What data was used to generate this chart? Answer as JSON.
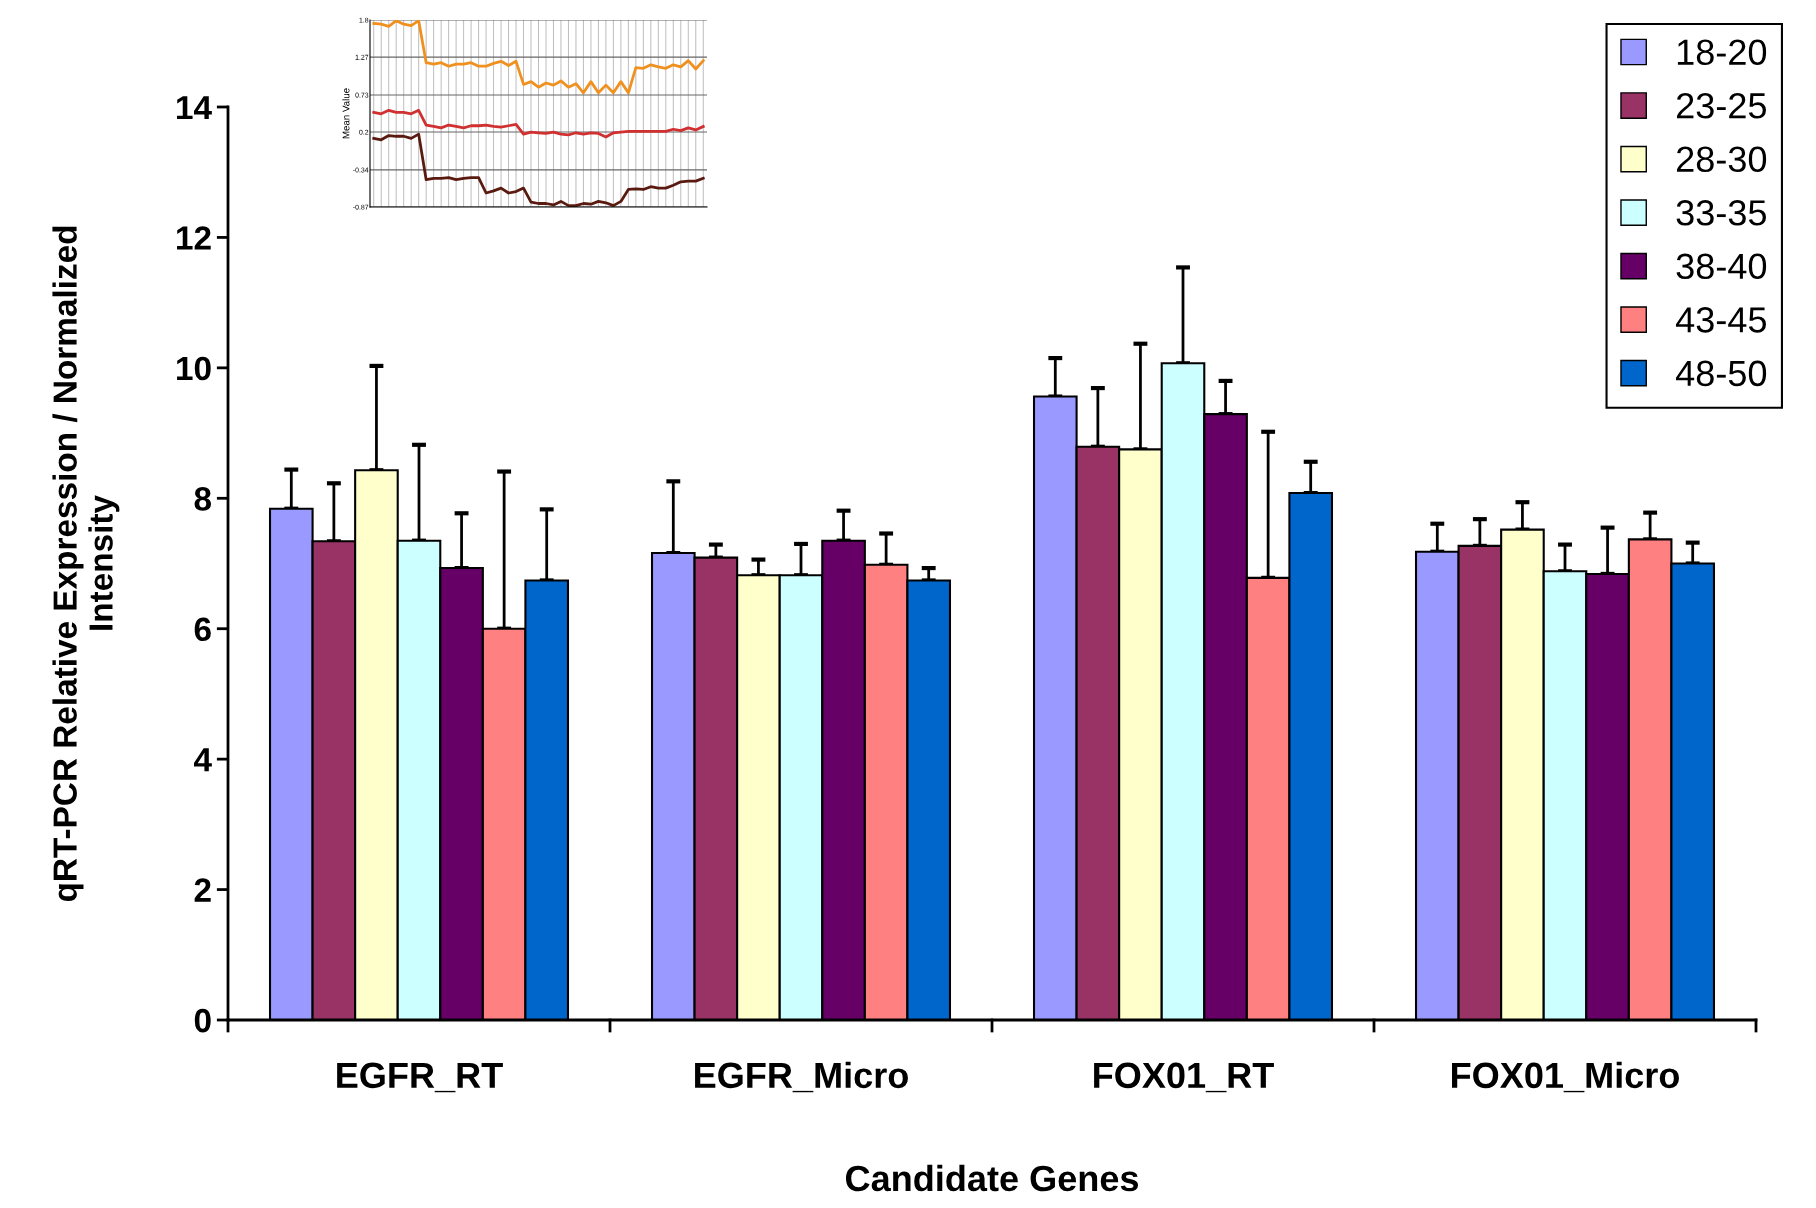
{
  "chart_data": [
    {
      "type": "bar",
      "xlabel": "Candidate Genes",
      "ylabel": "qRT-PCR Relative Expression / Normalized\nIntensity",
      "categories": [
        "EGFR_RT",
        "EGFR_Micro",
        "FOX01_RT",
        "FOX01_Micro"
      ],
      "ylim": [
        0,
        14
      ],
      "yticks": [
        0,
        2,
        4,
        6,
        8,
        10,
        12,
        14
      ],
      "grid": false,
      "legend": "top right",
      "series": [
        {
          "name": "18-20",
          "color": "#9999ff",
          "values": [
            7.84,
            7.16,
            9.56,
            7.18
          ],
          "errors": [
            [
              7.84,
              8.44
            ],
            [
              7.16,
              8.26
            ],
            [
              9.56,
              10.15
            ],
            [
              7.18,
              7.61
            ]
          ]
        },
        {
          "name": "23-25",
          "color": "#993366",
          "values": [
            7.34,
            7.09,
            8.79,
            7.27
          ],
          "errors": [
            [
              7.34,
              8.23
            ],
            [
              7.09,
              7.29
            ],
            [
              8.79,
              9.69
            ],
            [
              7.27,
              7.68
            ]
          ]
        },
        {
          "name": "28-30",
          "color": "#ffffcc",
          "values": [
            8.43,
            6.82,
            8.75,
            7.52
          ],
          "errors": [
            [
              8.43,
              10.03
            ],
            [
              6.82,
              7.06
            ],
            [
              8.75,
              10.37
            ],
            [
              7.52,
              7.94
            ]
          ]
        },
        {
          "name": "33-35",
          "color": "#ccffff",
          "values": [
            7.35,
            6.82,
            10.07,
            6.88
          ],
          "errors": [
            [
              7.35,
              8.82
            ],
            [
              6.82,
              7.3
            ],
            [
              10.07,
              11.54
            ],
            [
              6.88,
              7.29
            ]
          ]
        },
        {
          "name": "38-40",
          "color": "#660066",
          "values": [
            6.93,
            7.35,
            9.29,
            6.84
          ],
          "errors": [
            [
              6.93,
              7.77
            ],
            [
              7.35,
              7.81
            ],
            [
              9.29,
              9.8
            ],
            [
              6.84,
              7.55
            ]
          ]
        },
        {
          "name": "43-45",
          "color": "#ff8080",
          "values": [
            6.0,
            6.98,
            6.78,
            7.37
          ],
          "errors": [
            [
              6.0,
              8.41
            ],
            [
              6.98,
              7.46
            ],
            [
              6.78,
              9.02
            ],
            [
              7.37,
              7.78
            ]
          ]
        },
        {
          "name": "48-50",
          "color": "#0066cc",
          "values": [
            6.74,
            6.74,
            8.08,
            7.0
          ],
          "errors": [
            [
              6.74,
              7.83
            ],
            [
              6.74,
              6.93
            ],
            [
              8.08,
              8.56
            ],
            [
              7.0,
              7.32
            ]
          ]
        }
      ]
    },
    {
      "type": "line",
      "ylabel": "Mean Value",
      "categories": [
        null,
        null,
        null,
        null,
        null,
        null,
        null,
        null,
        null,
        null,
        null,
        null,
        null,
        null,
        null,
        null,
        null,
        null,
        null,
        null,
        null,
        null,
        null,
        null,
        null,
        null,
        null,
        null,
        null,
        null,
        null,
        null,
        null,
        null,
        null,
        null,
        null,
        null,
        null,
        null,
        null,
        null,
        null,
        null,
        null
      ],
      "ylim": [
        -0.87,
        1.8
      ],
      "yticks": [
        -0.87,
        -0.34,
        0.2,
        0.73,
        1.27,
        1.8
      ],
      "grid": true,
      "tick_labels": "y",
      "marker": "none",
      "line_style": "solid",
      "series": [
        {
          "color": "#f0901e",
          "values": [
            1.75,
            1.74,
            1.71,
            1.79,
            1.74,
            1.72,
            1.79,
            1.19,
            1.17,
            1.19,
            1.14,
            1.17,
            1.17,
            1.19,
            1.14,
            1.14,
            1.18,
            1.21,
            1.15,
            1.21,
            0.88,
            0.92,
            0.84,
            0.9,
            0.87,
            0.93,
            0.84,
            0.89,
            0.76,
            0.92,
            0.76,
            0.87,
            0.76,
            0.92,
            0.76,
            1.12,
            1.11,
            1.16,
            1.13,
            1.11,
            1.16,
            1.13,
            1.22,
            1.1,
            1.22
          ]
        },
        {
          "color": "#d03030",
          "values": [
            0.48,
            0.46,
            0.51,
            0.48,
            0.48,
            0.46,
            0.51,
            0.3,
            0.28,
            0.26,
            0.3,
            0.28,
            0.26,
            0.29,
            0.29,
            0.3,
            0.28,
            0.27,
            0.29,
            0.31,
            0.17,
            0.2,
            0.19,
            0.18,
            0.2,
            0.17,
            0.16,
            0.19,
            0.17,
            0.19,
            0.18,
            0.13,
            0.19,
            0.2,
            0.21,
            0.21,
            0.21,
            0.21,
            0.21,
            0.21,
            0.24,
            0.22,
            0.26,
            0.23,
            0.28
          ]
        },
        {
          "color": "#5a1a10",
          "values": [
            0.11,
            0.09,
            0.15,
            0.14,
            0.14,
            0.11,
            0.17,
            -0.48,
            -0.46,
            -0.46,
            -0.45,
            -0.48,
            -0.46,
            -0.45,
            -0.45,
            -0.67,
            -0.64,
            -0.6,
            -0.67,
            -0.65,
            -0.6,
            -0.8,
            -0.82,
            -0.82,
            -0.84,
            -0.79,
            -0.85,
            -0.85,
            -0.82,
            -0.83,
            -0.79,
            -0.81,
            -0.85,
            -0.79,
            -0.62,
            -0.61,
            -0.62,
            -0.58,
            -0.6,
            -0.6,
            -0.56,
            -0.51,
            -0.5,
            -0.5,
            -0.46
          ]
        }
      ]
    }
  ]
}
